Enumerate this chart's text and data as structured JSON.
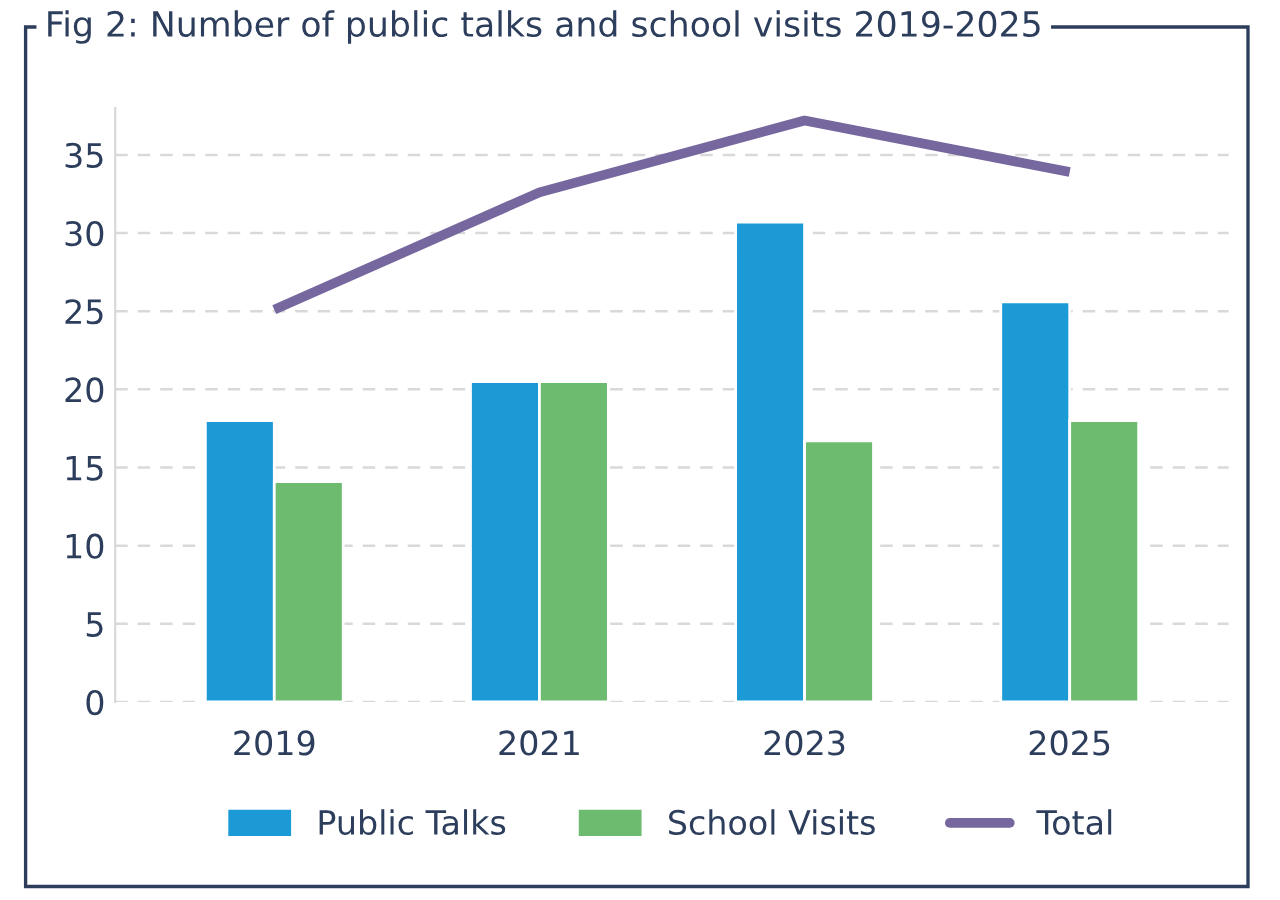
{
  "chart_data": {
    "type": "bar",
    "title": "Fig 2: Number of public talks and school visits 2019-2025",
    "categories": [
      "2019",
      "2021",
      "2023",
      "2025"
    ],
    "series": [
      {
        "name": "Public Talks",
        "color": "#1b9ad6",
        "values": [
          18,
          20.5,
          30.7,
          25.6
        ]
      },
      {
        "name": "School Visits",
        "color": "#6cbb6f",
        "values": [
          14.1,
          20.5,
          16.7,
          18
        ]
      },
      {
        "name": "Total",
        "type": "line",
        "color": "#76679e",
        "values": [
          25.1,
          32.6,
          37.2,
          33.9
        ]
      }
    ],
    "ylim": [
      0,
      38
    ],
    "yticks": [
      0,
      5,
      10,
      15,
      20,
      25,
      30,
      35
    ],
    "grid": "y",
    "legend": "bottom",
    "marker": "none",
    "line_style": "solid"
  }
}
